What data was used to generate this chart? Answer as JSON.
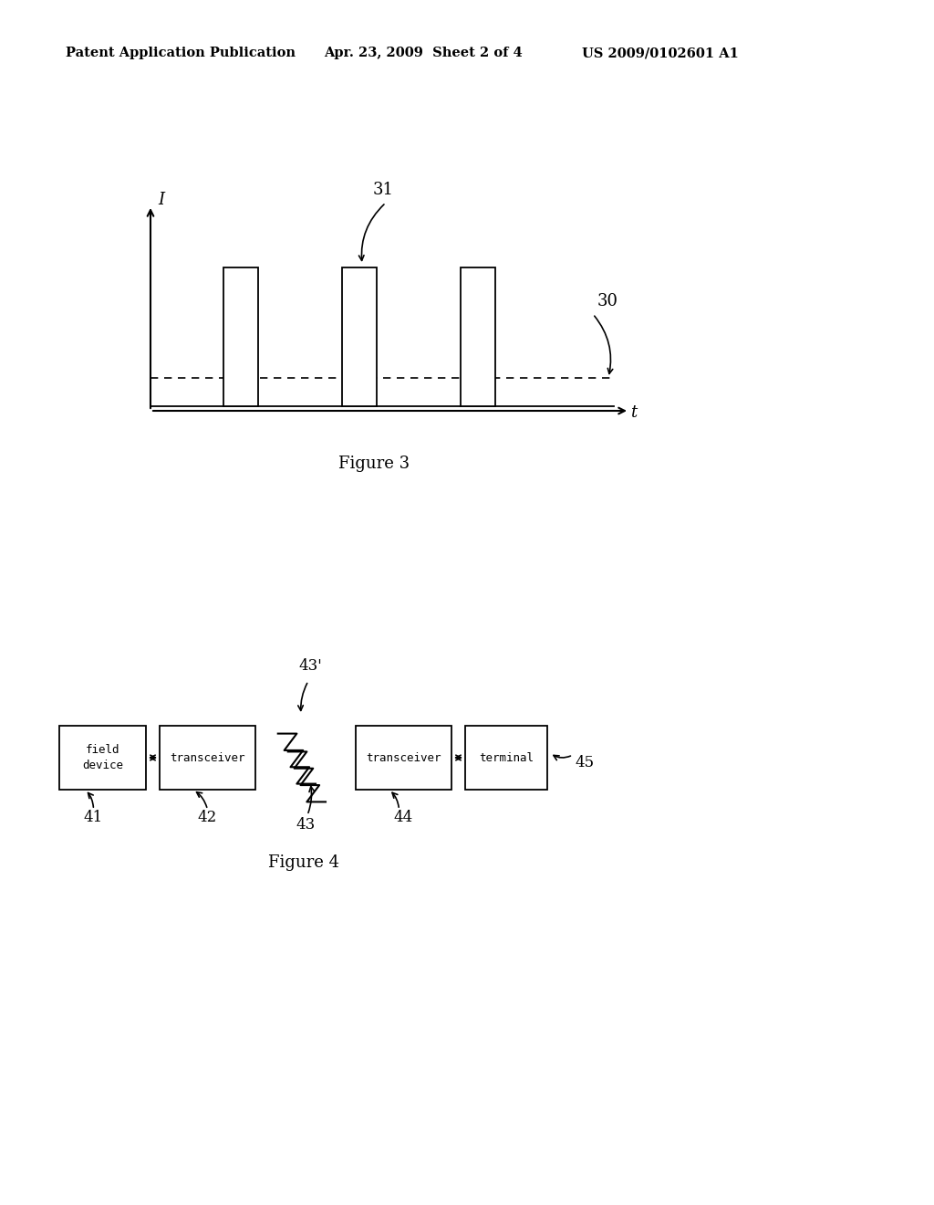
{
  "bg_color": "#ffffff",
  "header_left": "Patent Application Publication",
  "header_mid": "Apr. 23, 2009  Sheet 2 of 4",
  "header_right": "US 2009/0102601 A1",
  "fig3_title": "Figure 3",
  "fig4_title": "Figure 4",
  "fig3_label_I": "I",
  "fig3_label_t": "t",
  "fig3_label_31": "31",
  "fig3_label_30": "30",
  "fig4_labels": [
    "field\ndevice",
    "transceiver",
    "transceiver",
    "terminal"
  ],
  "fig4_ids": [
    "41",
    "42",
    "43",
    "44",
    "45"
  ],
  "fig4_label_43p": "43'",
  "fig4_label_43": "43"
}
